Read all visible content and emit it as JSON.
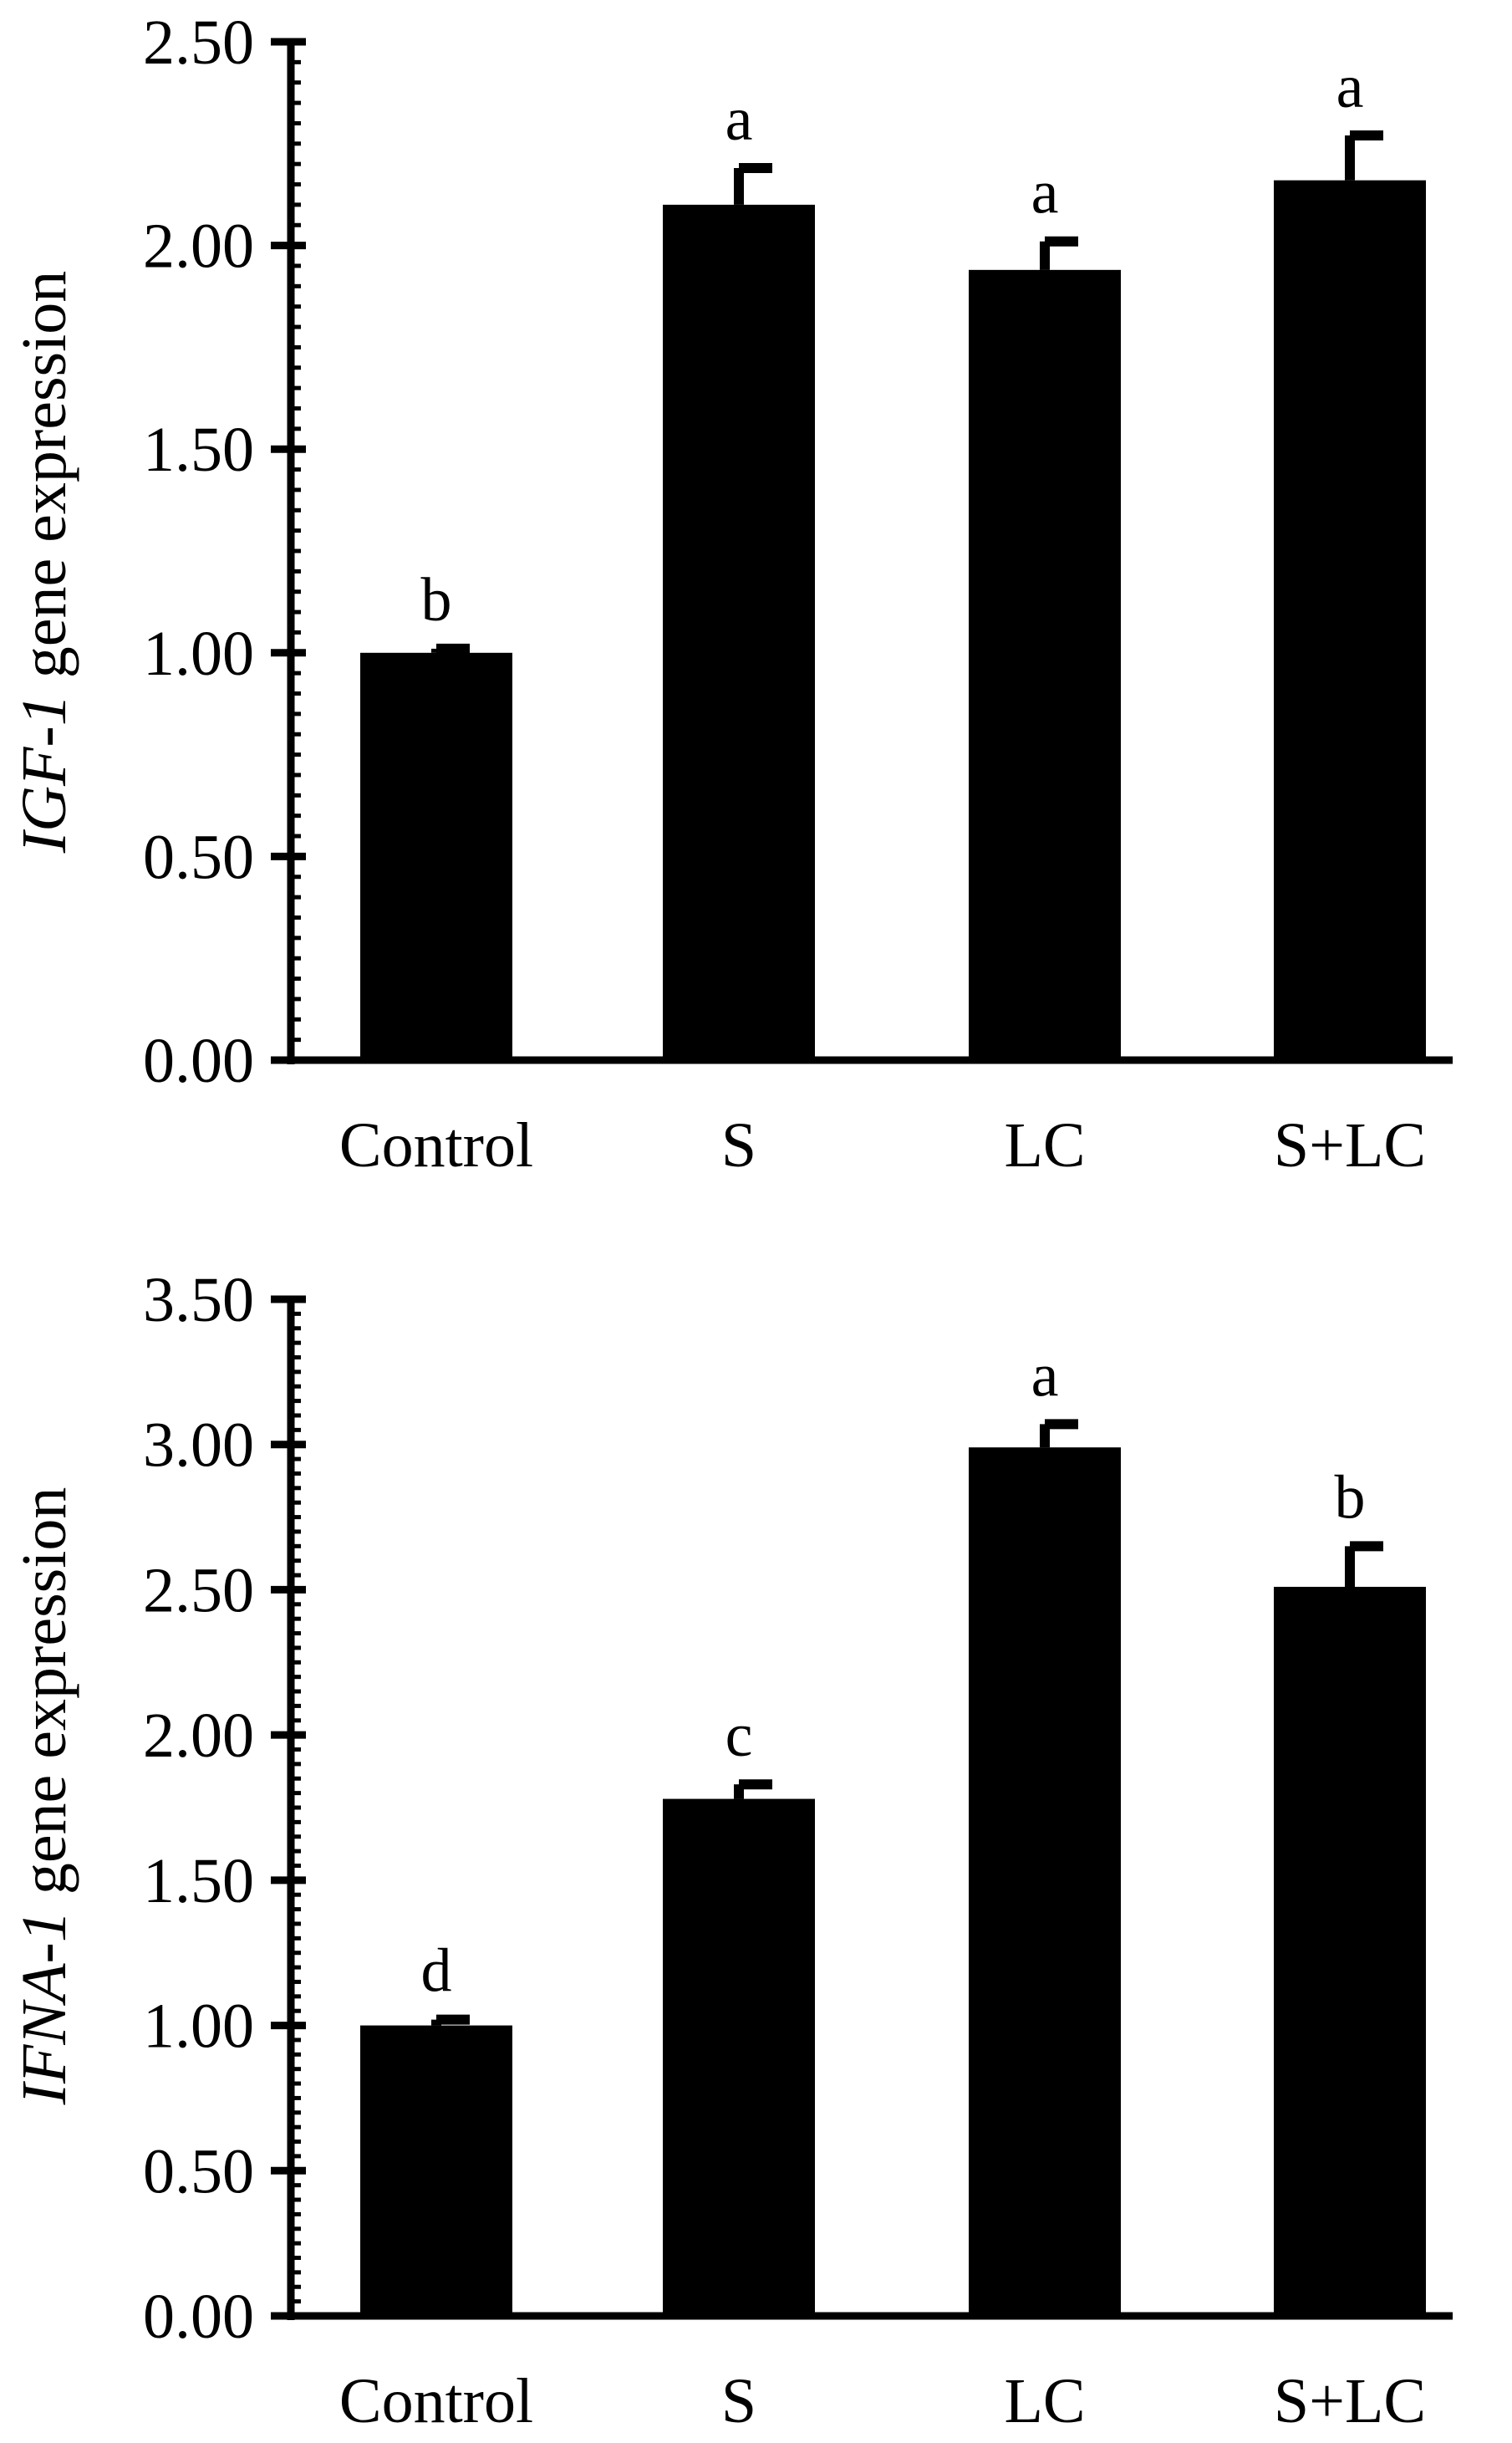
{
  "chart_data": [
    {
      "type": "bar",
      "categories": [
        "Control",
        "S",
        "LC",
        "S+LC"
      ],
      "values": [
        1.0,
        2.1,
        1.94,
        2.16
      ],
      "errors": [
        0.01,
        0.09,
        0.07,
        0.11
      ],
      "significance": [
        "b",
        "a",
        "a",
        "a"
      ],
      "ylabel_gene": "IGF-1",
      "ylabel_rest": " gene expression",
      "xlabel": "",
      "ylim": [
        0,
        2.5
      ],
      "yticks": [
        "0.00",
        "0.50",
        "1.00",
        "1.50",
        "2.00",
        "2.50"
      ],
      "bar_color": "#000000"
    },
    {
      "type": "bar",
      "categories": [
        "Control",
        "S",
        "LC",
        "S+LC"
      ],
      "values": [
        1.0,
        1.78,
        2.99,
        2.51
      ],
      "errors": [
        0.02,
        0.05,
        0.08,
        0.14
      ],
      "significance": [
        "d",
        "c",
        "a",
        "b"
      ],
      "ylabel_gene": "IFNA-1",
      "ylabel_rest": " gene expression",
      "xlabel": "",
      "ylim": [
        0,
        3.5
      ],
      "yticks": [
        "0.00",
        "0.50",
        "1.00",
        "1.50",
        "2.00",
        "2.50",
        "3.00",
        "3.50"
      ],
      "bar_color": "#000000"
    }
  ]
}
